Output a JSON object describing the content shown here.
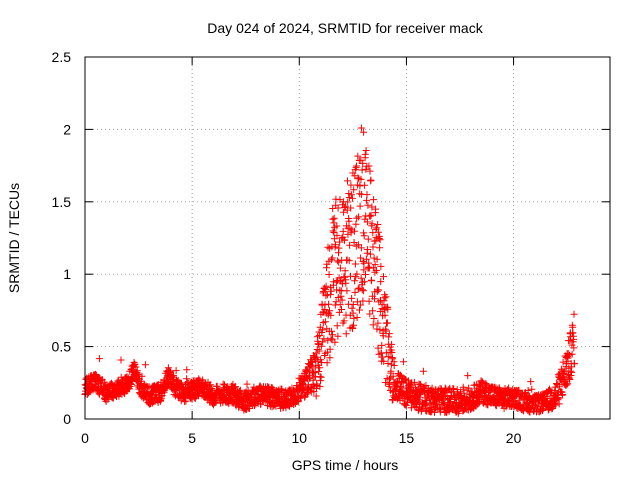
{
  "chart_data": {
    "type": "scatter",
    "title": "Day 024 of 2024, SRMTID for receiver mack",
    "xlabel": "GPS time / hours",
    "ylabel": "SRMTID / TECUs",
    "xlim": [
      0,
      24.5
    ],
    "ylim": [
      0,
      2.5
    ],
    "xticks": [
      0,
      5,
      10,
      15,
      20
    ],
    "yticks": [
      0,
      0.5,
      1,
      1.5,
      2,
      2.5
    ],
    "ytick_labels": [
      "0",
      "0.5",
      "1",
      "1.5",
      "2",
      "2.5"
    ],
    "grid": true,
    "marker": "+",
    "colors": {
      "series": "#ff0000",
      "grid": "#a0a0a0",
      "axis": "#000000"
    },
    "series": [
      {
        "name": "SRMTID",
        "profile": [
          [
            0,
            0.22
          ],
          [
            0.5,
            0.26
          ],
          [
            1,
            0.18
          ],
          [
            1.5,
            0.21
          ],
          [
            2,
            0.24
          ],
          [
            2.3,
            0.34
          ],
          [
            2.6,
            0.22
          ],
          [
            3,
            0.16
          ],
          [
            3.5,
            0.18
          ],
          [
            3.9,
            0.3
          ],
          [
            4.2,
            0.22
          ],
          [
            4.6,
            0.18
          ],
          [
            5,
            0.2
          ],
          [
            5.5,
            0.22
          ],
          [
            6,
            0.16
          ],
          [
            6.5,
            0.18
          ],
          [
            7,
            0.16
          ],
          [
            7.5,
            0.12
          ],
          [
            8,
            0.17
          ],
          [
            8.5,
            0.16
          ],
          [
            9,
            0.14
          ],
          [
            9.5,
            0.13
          ],
          [
            10,
            0.2
          ],
          [
            10.5,
            0.28
          ],
          [
            10.9,
            0.38
          ],
          [
            11.2,
            0.65
          ],
          [
            11.5,
            0.95
          ],
          [
            12,
            1.1
          ],
          [
            12.5,
            1.15
          ],
          [
            12.9,
            1.35
          ],
          [
            13.2,
            1.3
          ],
          [
            13.5,
            1.1
          ],
          [
            13.8,
            0.8
          ],
          [
            14.1,
            0.5
          ],
          [
            14.4,
            0.25
          ],
          [
            15,
            0.18
          ],
          [
            15.5,
            0.15
          ],
          [
            16,
            0.14
          ],
          [
            16.5,
            0.13
          ],
          [
            17,
            0.13
          ],
          [
            17.5,
            0.12
          ],
          [
            18,
            0.14
          ],
          [
            18.5,
            0.19
          ],
          [
            19,
            0.16
          ],
          [
            19.5,
            0.14
          ],
          [
            20,
            0.15
          ],
          [
            20.5,
            0.12
          ],
          [
            21,
            0.1
          ],
          [
            21.5,
            0.12
          ],
          [
            22,
            0.16
          ],
          [
            22.3,
            0.28
          ],
          [
            22.6,
            0.4
          ],
          [
            22.8,
            0.55
          ]
        ],
        "spread": [
          [
            0,
            0.06
          ],
          [
            9.8,
            0.07
          ],
          [
            10.5,
            0.12
          ],
          [
            11,
            0.25
          ],
          [
            11.5,
            0.5
          ],
          [
            12.5,
            0.55
          ],
          [
            13,
            0.6
          ],
          [
            13.5,
            0.5
          ],
          [
            14,
            0.35
          ],
          [
            14.5,
            0.1
          ],
          [
            21.5,
            0.06
          ],
          [
            22.2,
            0.12
          ],
          [
            22.8,
            0.18
          ]
        ],
        "sample_interval_h": 0.01,
        "time_range": [
          0,
          22.85
        ],
        "peak": {
          "x": 12.9,
          "y": 2.01
        }
      }
    ]
  }
}
